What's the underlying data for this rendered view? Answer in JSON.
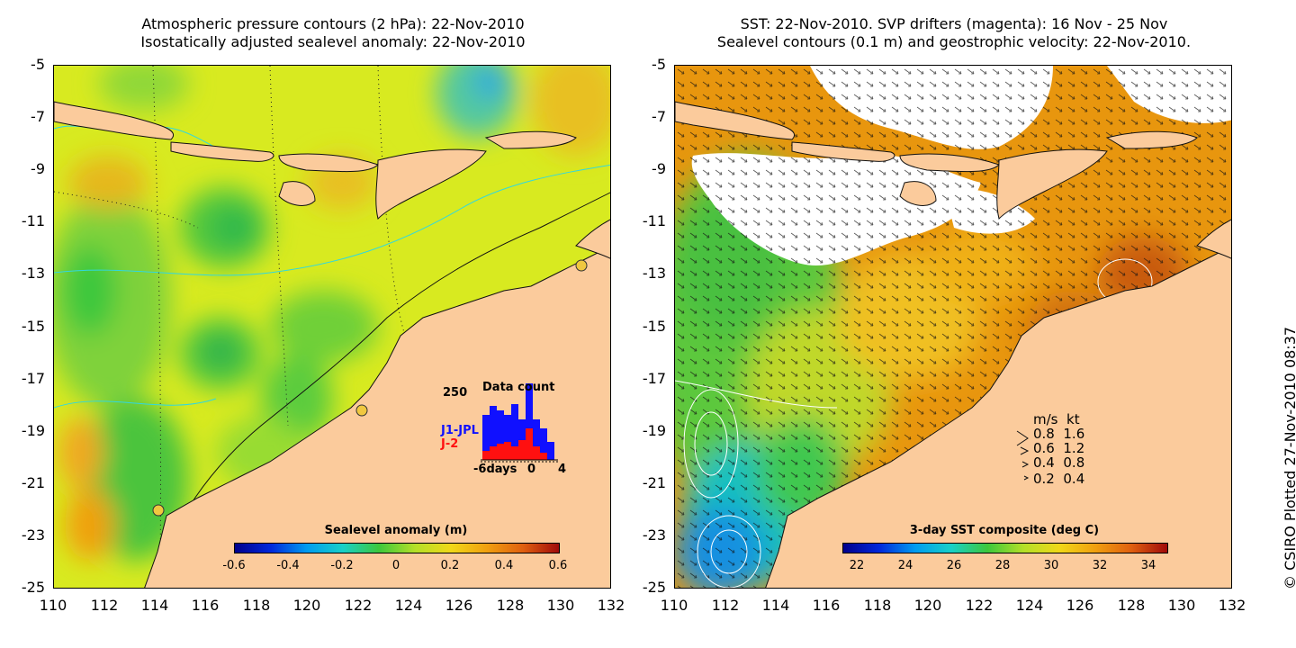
{
  "left_panel": {
    "title_line1": "Atmospheric pressure contours (2 hPa): 22-Nov-2010",
    "title_line2": "Isostatically adjusted sealevel anomaly: 22-Nov-2010",
    "colorbar": {
      "title": "Sealevel anomaly (m)",
      "labels": [
        "-0.6",
        "-0.4",
        "-0.2",
        "0",
        "0.2",
        "0.4",
        "0.6"
      ]
    },
    "inset": {
      "y_label": "250",
      "title": "Data count",
      "series1_label": "J1-JPL",
      "series2_label": "J-2",
      "x_labels": [
        "-6days",
        "0",
        "4"
      ],
      "series1_color": "#1010ff",
      "series2_color": "#ff1010"
    }
  },
  "right_panel": {
    "title_line1": "SST: 22-Nov-2010. SVP drifters (magenta): 16 Nov - 25 Nov",
    "title_line2": "Sealevel contours (0.1 m) and geostrophic velocity: 22-Nov-2010.",
    "colorbar": {
      "title": "3-day SST composite (deg C)",
      "labels": [
        "22",
        "24",
        "26",
        "28",
        "30",
        "32",
        "34"
      ]
    },
    "velocity_legend": {
      "header": "m/s  kt",
      "rows": [
        "0.8  1.6",
        "0.6  1.2",
        "0.4  0.8",
        "0.2  0.4"
      ]
    }
  },
  "axes": {
    "y_ticks": [
      "-5",
      "-7",
      "-9",
      "-11",
      "-13",
      "-15",
      "-17",
      "-19",
      "-21",
      "-23",
      "-25"
    ],
    "x_ticks": [
      "110",
      "112",
      "114",
      "116",
      "118",
      "120",
      "122",
      "124",
      "126",
      "128",
      "130",
      "132"
    ]
  },
  "copyright": "© CSIRO Plotted 27-Nov-2010 08:37",
  "colors": {
    "land": "#fbcb9c",
    "slvl_base": "#d8ea20",
    "sst_warm": "#e8960e",
    "cloud": "#ffffff"
  }
}
